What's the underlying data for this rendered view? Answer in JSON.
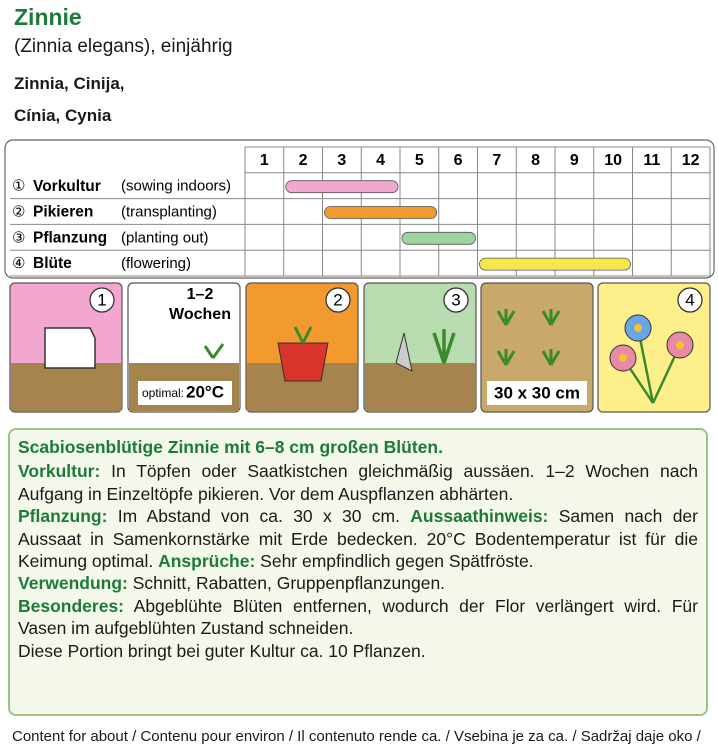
{
  "header": {
    "title": "Zinnie",
    "subtitle": "(Zinnia elegans), einjährig",
    "names": [
      "Zinnia, Cinija,",
      "Cínia, Cynia"
    ]
  },
  "calendar": {
    "months": [
      "1",
      "2",
      "3",
      "4",
      "5",
      "6",
      "7",
      "8",
      "9",
      "10",
      "11",
      "12"
    ],
    "rows": [
      {
        "num": "①",
        "label": "Vorkultur",
        "translation": "(sowing indoors)",
        "start": 2,
        "end": 4,
        "color": "#f0a8cf"
      },
      {
        "num": "②",
        "label": "Pikieren",
        "translation": "(transplanting)",
        "start": 3,
        "end": 5,
        "color": "#f39a2e"
      },
      {
        "num": "③",
        "label": "Pflanzung",
        "translation": "(planting out)",
        "start": 5,
        "end": 6,
        "color": "#9fd3a2"
      },
      {
        "num": "④",
        "label": "Blüte",
        "translation": "(flowering)",
        "start": 7,
        "end": 10,
        "color": "#f6e84a"
      }
    ]
  },
  "panels": [
    {
      "badge": "1",
      "color": "#f3a6cf"
    },
    {
      "heading": "1–2\nWochen",
      "note": "optimal:",
      "temp": "20°C",
      "color": "#ffffff"
    },
    {
      "badge": "2",
      "color": "#f39a2e"
    },
    {
      "badge": "3",
      "color": "#b8dcb0"
    },
    {
      "caption": "30 x 30 cm",
      "color": "#c9a96b"
    },
    {
      "badge": "4",
      "color": "#fdf08a"
    }
  ],
  "description": {
    "heading": "Scabiosenblütige Zinnie mit 6–8 cm großen Blüten.",
    "paragraphs": [
      [
        {
          "label": "Vorkultur:"
        },
        {
          "text": " In Töpfen oder Saatkistchen gleichmäßig aussäen. 1–2 Wochen nach Aufgang in Einzeltöpfe pikieren. Vor dem Auspflanzen abhärten."
        }
      ],
      [
        {
          "label": "Pflanzung:"
        },
        {
          "text": " Im Abstand von ca. 30 x 30 cm. "
        },
        {
          "label": "Aussaathinweis:"
        },
        {
          "text": " Samen nach der Aussaat in Samenkornstärke mit Erde bedecken. 20°C Bodentemperatur ist für die Keimung optimal. "
        },
        {
          "label": "Ansprüche:"
        },
        {
          "text": " Sehr empfindlich gegen Spätfröste."
        }
      ],
      [
        {
          "label": "Verwendung:"
        },
        {
          "text": " Schnitt, Rabatten, Gruppenpflanzungen."
        }
      ],
      [
        {
          "label": "Besonderes:"
        },
        {
          "text": " Abgeblühte Blüten entfernen, wodurch der Flor verlängert wird. Für Vasen im aufgeblühten Zustand schneiden."
        }
      ],
      [
        {
          "text": "Diese Portion bringt bei guter Kultur ca. 10 Pflanzen."
        }
      ]
    ]
  },
  "footer": "Content for about / Contenu pour environ / Il contenuto rende ca. / Vsebina je za ca. / Sadržaj daje oko /"
}
